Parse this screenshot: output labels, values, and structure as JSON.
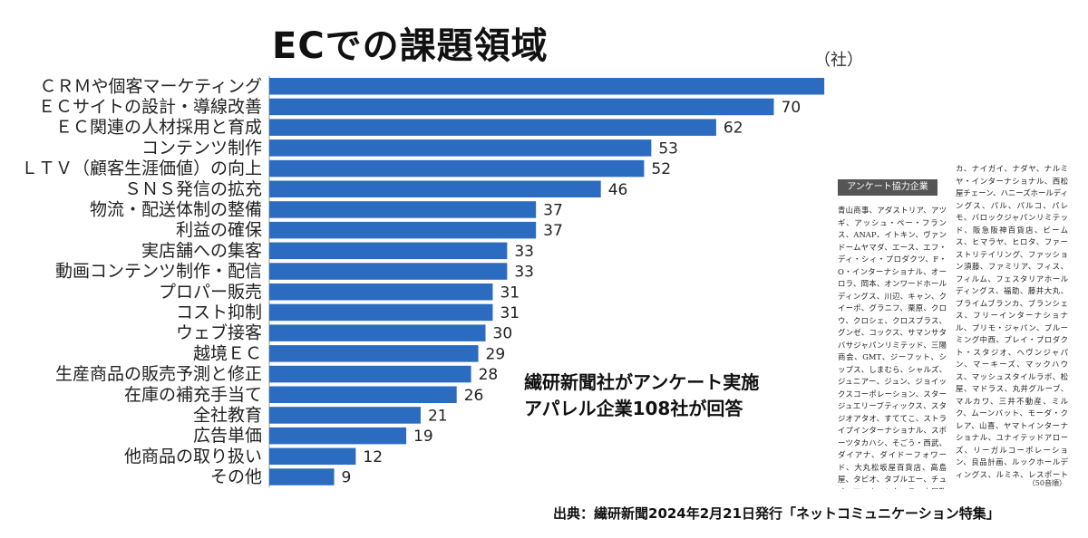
{
  "title": "ECでの課題領域",
  "unit": "（社）",
  "note_lines": [
    "繊研新聞社がアンケート実施",
    "アパレル企業108社が回答"
  ],
  "source": "出典：繊研新聞2024年2月21日発行「ネットコミュニケーション特集」",
  "panel": {
    "heading": "アンケート協力企業",
    "left_text": "青山商事、アダストリア、アツギ、アッシュ・ペー・フランス、ANAP、イトキン、ヴァンドームヤマダ、エース、エフ・ディ・シィ・プロダクツ、F・O・インターナショナル、オーロラ、岡本、オンワードホールディングス、川辺、キャン、クイーポ、グラニフ、栗原、クロウ、クロシェ、クロスプラス、グンゼ、コックス、サマンサタバサジャパンリミテッド、三陽商会、GMT、ジーフット、シップス、しまむら、シャルズ、ジュニアー、ジュン、ジョイックスコーポレーション、スタージュエリーブティックス、スタジオアタオ、すててこ、ストライプインターナショナル、スポーツタカハシ、そごう・西武、ダイアナ、ダイドーフォワード、大丸松坂屋百貨店、高島屋、タビオ、タブルエー、チュチュアンナ、ツタハラ、土屋鞄製造所、TSIホールディングス、デサントジャパン、東京ソワール、東京デリ",
    "right_text": "カ、ナイガイ、ナダヤ、ナルミヤ・インターナショナル、西松屋チェーン、ハニーズホールディングス、パル、パルコ、パレモ、バロックジャパンリミテッド、阪急阪神百貨店、ビームス、ヒマラヤ、ヒロタ、ファーストリテイリング、ファッション須藤、ファミリア、フィス、フィルム、フェスタリアホールディングス、福助、藤井大丸、プライムブランカ、ブランシェス、フリーインターナショナル、プリモ・ジャパン、ブルーミング中西、プレイ・プロダクト・スタジオ、ヘヴンジャパン、マーキーズ、マックハウス、マッシュスタイルラボ、松屋、マドラス、丸井グループ、マルカワ、三井不動産、ミルク、ムーンバット、モーダ・クレア、山喜、ヤマトインターナショナル、ユナイテッドアローズ、リーガルコーポレーション、良品計画、ルックホールディングス、ルミネ、レスポートサックジャパン、レリアン、ロフトマン、ワークマン、ワールド、ワールドパーティー、ワコールホールディングス",
    "end_note": "（50音順）"
  },
  "chart_data": {
    "type": "bar",
    "orientation": "horizontal",
    "title": "ECでの課題領域",
    "unit": "（社）",
    "categories": [
      "ＣＲＭや個客マーケティング",
      "ＥＣサイトの設計・導線改善",
      "ＥＣ関連の人材採用と育成",
      "コンテンツ制作",
      "ＬＴＶ（顧客生涯価値）の向上",
      "ＳＮＳ発信の拡充",
      "物流・配送体制の整備",
      "利益の確保",
      "実店舗への集客",
      "動画コンテンツ制作・配信",
      "プロパー販売",
      "コスト抑制",
      "ウェブ接客",
      "越境ＥＣ",
      "生産商品の販売予測と修正",
      "在庫の補充手当て",
      "全社教育",
      "広告単価",
      "他商品の取り扱い",
      "その他"
    ],
    "values": [
      77,
      70,
      62,
      53,
      52,
      46,
      37,
      37,
      33,
      33,
      31,
      31,
      30,
      29,
      28,
      26,
      21,
      19,
      12,
      9
    ],
    "series_color": "#2b6cc0",
    "grid": false,
    "legend": "none"
  }
}
